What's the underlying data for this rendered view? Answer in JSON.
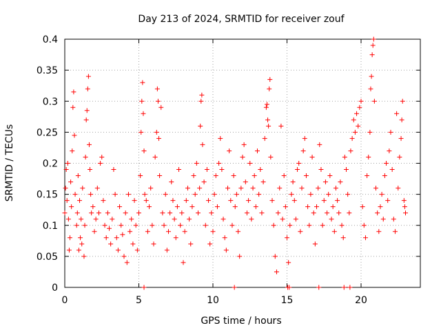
{
  "chart_data": {
    "type": "scatter",
    "title": "Day 213 of 2024, SRMTID for receiver zouf",
    "xlabel": "GPS time / hours",
    "ylabel": "SRMTID / TECUs",
    "xlim": [
      0,
      24
    ],
    "ylim": [
      0,
      0.4
    ],
    "x_ticks": [
      0,
      5,
      10,
      15,
      20
    ],
    "x_tick_labels": [
      "0",
      "5",
      "10",
      "15",
      "20"
    ],
    "y_ticks": [
      0,
      0.05,
      0.1,
      0.15,
      0.2,
      0.25,
      0.3,
      0.35,
      0.4
    ],
    "y_tick_labels": [
      "0",
      "0.05",
      "0.1",
      "0.15",
      "0.2",
      "0.25",
      "0.3",
      "0.35",
      "0.4"
    ],
    "grid": true,
    "marker": "+",
    "color": "#ff0000",
    "series": [
      {
        "points": [
          [
            0.0,
            0.12
          ],
          [
            0.05,
            0.16
          ],
          [
            0.1,
            0.19
          ],
          [
            0.15,
            0.14
          ],
          [
            0.2,
            0.2
          ],
          [
            0.25,
            0.11
          ],
          [
            0.3,
            0.06
          ],
          [
            0.35,
            0.08
          ],
          [
            0.4,
            0.17
          ],
          [
            0.45,
            0.13
          ],
          [
            0.5,
            0.22
          ],
          [
            0.55,
            0.29
          ],
          [
            0.6,
            0.315
          ],
          [
            0.65,
            0.245
          ],
          [
            0.7,
            0.15
          ],
          [
            0.8,
            0.1
          ],
          [
            0.85,
            0.12
          ],
          [
            0.9,
            0.18
          ],
          [
            0.95,
            0.06
          ],
          [
            1.0,
            0.14
          ],
          [
            1.05,
            0.08
          ],
          [
            1.1,
            0.11
          ],
          [
            1.15,
            0.07
          ],
          [
            1.2,
            0.16
          ],
          [
            1.3,
            0.05
          ],
          [
            1.35,
            0.1
          ],
          [
            1.4,
            0.21
          ],
          [
            1.45,
            0.27
          ],
          [
            1.5,
            0.285
          ],
          [
            1.55,
            0.32
          ],
          [
            1.6,
            0.34
          ],
          [
            1.65,
            0.23
          ],
          [
            1.7,
            0.19
          ],
          [
            1.75,
            0.15
          ],
          [
            1.8,
            0.12
          ],
          [
            1.9,
            0.13
          ],
          [
            2.0,
            0.09
          ],
          [
            2.1,
            0.11
          ],
          [
            2.2,
            0.16
          ],
          [
            2.3,
            0.12
          ],
          [
            2.4,
            0.2
          ],
          [
            2.5,
            0.21
          ],
          [
            2.6,
            0.14
          ],
          [
            2.7,
            0.1
          ],
          [
            2.8,
            0.08
          ],
          [
            2.9,
            0.12
          ],
          [
            3.0,
            0.095
          ],
          [
            3.1,
            0.07
          ],
          [
            3.2,
            0.11
          ],
          [
            3.3,
            0.19
          ],
          [
            3.4,
            0.15
          ],
          [
            3.5,
            0.08
          ],
          [
            3.6,
            0.06
          ],
          [
            3.7,
            0.13
          ],
          [
            3.8,
            0.1
          ],
          [
            3.9,
            0.085
          ],
          [
            4.0,
            0.05
          ],
          [
            4.1,
            0.12
          ],
          [
            4.2,
            0.04
          ],
          [
            4.3,
            0.15
          ],
          [
            4.4,
            0.09
          ],
          [
            4.5,
            0.11
          ],
          [
            4.6,
            0.07
          ],
          [
            4.7,
            0.14
          ],
          [
            4.8,
            0.1
          ],
          [
            4.9,
            0.06
          ],
          [
            5.0,
            0.12
          ],
          [
            5.1,
            0.18
          ],
          [
            5.15,
            0.25
          ],
          [
            5.2,
            0.3
          ],
          [
            5.25,
            0.33
          ],
          [
            5.3,
            0.28
          ],
          [
            5.35,
            0.22
          ],
          [
            5.4,
            0.15
          ],
          [
            5.5,
            0.14
          ],
          [
            5.6,
            0.09
          ],
          [
            5.7,
            0.13
          ],
          [
            5.8,
            0.16
          ],
          [
            5.9,
            0.1
          ],
          [
            6.0,
            0.07
          ],
          [
            6.1,
            0.21
          ],
          [
            6.2,
            0.25
          ],
          [
            6.25,
            0.32
          ],
          [
            6.3,
            0.3
          ],
          [
            6.35,
            0.24
          ],
          [
            6.4,
            0.18
          ],
          [
            6.5,
            0.29
          ],
          [
            6.6,
            0.12
          ],
          [
            6.7,
            0.1
          ],
          [
            6.8,
            0.15
          ],
          [
            6.9,
            0.06
          ],
          [
            7.0,
            0.09
          ],
          [
            7.1,
            0.12
          ],
          [
            7.2,
            0.17
          ],
          [
            7.3,
            0.14
          ],
          [
            7.4,
            0.11
          ],
          [
            7.5,
            0.08
          ],
          [
            7.6,
            0.13
          ],
          [
            7.7,
            0.19
          ],
          [
            7.8,
            0.1
          ],
          [
            7.9,
            0.12
          ],
          [
            8.0,
            0.04
          ],
          [
            8.1,
            0.09
          ],
          [
            8.2,
            0.14
          ],
          [
            8.3,
            0.16
          ],
          [
            8.4,
            0.11
          ],
          [
            8.5,
            0.07
          ],
          [
            8.6,
            0.13
          ],
          [
            8.7,
            0.18
          ],
          [
            8.8,
            0.15
          ],
          [
            8.9,
            0.2
          ],
          [
            9.0,
            0.12
          ],
          [
            9.1,
            0.16
          ],
          [
            9.15,
            0.26
          ],
          [
            9.2,
            0.3
          ],
          [
            9.25,
            0.31
          ],
          [
            9.3,
            0.23
          ],
          [
            9.4,
            0.17
          ],
          [
            9.5,
            0.1
          ],
          [
            9.6,
            0.19
          ],
          [
            9.7,
            0.14
          ],
          [
            9.8,
            0.07
          ],
          [
            9.9,
            0.12
          ],
          [
            10.0,
            0.09
          ],
          [
            10.1,
            0.15
          ],
          [
            10.2,
            0.18
          ],
          [
            10.3,
            0.13
          ],
          [
            10.4,
            0.2
          ],
          [
            10.5,
            0.24
          ],
          [
            10.6,
            0.19
          ],
          [
            10.7,
            0.11
          ],
          [
            10.8,
            0.08
          ],
          [
            10.9,
            0.06
          ],
          [
            11.0,
            0.16
          ],
          [
            11.1,
            0.22
          ],
          [
            11.2,
            0.14
          ],
          [
            11.3,
            0.1
          ],
          [
            11.4,
            0.18
          ],
          [
            11.5,
            0.13
          ],
          [
            11.6,
            0.15
          ],
          [
            11.7,
            0.09
          ],
          [
            11.8,
            0.05
          ],
          [
            11.9,
            0.16
          ],
          [
            12.0,
            0.21
          ],
          [
            12.1,
            0.23
          ],
          [
            12.2,
            0.17
          ],
          [
            12.3,
            0.12
          ],
          [
            12.4,
            0.14
          ],
          [
            12.5,
            0.2
          ],
          [
            12.6,
            0.11
          ],
          [
            12.7,
            0.16
          ],
          [
            12.8,
            0.18
          ],
          [
            12.9,
            0.13
          ],
          [
            13.0,
            0.22
          ],
          [
            13.1,
            0.15
          ],
          [
            13.2,
            0.19
          ],
          [
            13.3,
            0.12
          ],
          [
            13.4,
            0.17
          ],
          [
            13.5,
            0.24
          ],
          [
            13.6,
            0.29
          ],
          [
            13.65,
            0.295
          ],
          [
            13.7,
            0.27
          ],
          [
            13.75,
            0.26
          ],
          [
            13.8,
            0.32
          ],
          [
            13.85,
            0.335
          ],
          [
            13.9,
            0.21
          ],
          [
            14.0,
            0.14
          ],
          [
            14.1,
            0.1
          ],
          [
            14.2,
            0.05
          ],
          [
            14.3,
            0.025
          ],
          [
            14.4,
            0.12
          ],
          [
            14.5,
            0.16
          ],
          [
            14.6,
            0.26
          ],
          [
            14.7,
            0.11
          ],
          [
            14.8,
            0.18
          ],
          [
            14.9,
            0.13
          ],
          [
            15.0,
            0.08
          ],
          [
            15.1,
            0.04
          ],
          [
            15.2,
            0.1
          ],
          [
            15.3,
            0.15
          ],
          [
            15.4,
            0.17
          ],
          [
            15.5,
            0.14
          ],
          [
            15.6,
            0.11
          ],
          [
            15.7,
            0.19
          ],
          [
            15.8,
            0.2
          ],
          [
            15.9,
            0.09
          ],
          [
            16.0,
            0.16
          ],
          [
            16.1,
            0.22
          ],
          [
            16.2,
            0.24
          ],
          [
            16.3,
            0.18
          ],
          [
            16.4,
            0.13
          ],
          [
            16.5,
            0.1
          ],
          [
            16.6,
            0.15
          ],
          [
            16.7,
            0.21
          ],
          [
            16.8,
            0.12
          ],
          [
            16.9,
            0.07
          ],
          [
            17.0,
            0.13
          ],
          [
            17.1,
            0.16
          ],
          [
            17.2,
            0.23
          ],
          [
            17.3,
            0.19
          ],
          [
            17.4,
            0.1
          ],
          [
            17.5,
            0.14
          ],
          [
            17.6,
            0.17
          ],
          [
            17.7,
            0.12
          ],
          [
            17.8,
            0.15
          ],
          [
            17.9,
            0.18
          ],
          [
            18.0,
            0.11
          ],
          [
            18.1,
            0.13
          ],
          [
            18.2,
            0.09
          ],
          [
            18.3,
            0.16
          ],
          [
            18.4,
            0.14
          ],
          [
            18.5,
            0.12
          ],
          [
            18.6,
            0.17
          ],
          [
            18.7,
            0.1
          ],
          [
            18.8,
            0.08
          ],
          [
            18.9,
            0.21
          ],
          [
            19.0,
            0.19
          ],
          [
            19.1,
            0.15
          ],
          [
            19.2,
            0.12
          ],
          [
            19.3,
            0.22
          ],
          [
            19.4,
            0.24
          ],
          [
            19.5,
            0.27
          ],
          [
            19.6,
            0.25
          ],
          [
            19.7,
            0.28
          ],
          [
            19.8,
            0.26
          ],
          [
            19.9,
            0.29
          ],
          [
            20.0,
            0.3
          ],
          [
            20.1,
            0.13
          ],
          [
            20.2,
            0.1
          ],
          [
            20.3,
            0.08
          ],
          [
            20.4,
            0.18
          ],
          [
            20.5,
            0.21
          ],
          [
            20.6,
            0.25
          ],
          [
            20.65,
            0.32
          ],
          [
            20.7,
            0.34
          ],
          [
            20.75,
            0.375
          ],
          [
            20.8,
            0.39
          ],
          [
            20.85,
            0.4
          ],
          [
            20.9,
            0.3
          ],
          [
            21.0,
            0.16
          ],
          [
            21.1,
            0.12
          ],
          [
            21.2,
            0.09
          ],
          [
            21.3,
            0.13
          ],
          [
            21.4,
            0.15
          ],
          [
            21.5,
            0.11
          ],
          [
            21.6,
            0.18
          ],
          [
            21.7,
            0.2
          ],
          [
            21.8,
            0.14
          ],
          [
            21.9,
            0.22
          ],
          [
            22.0,
            0.25
          ],
          [
            22.1,
            0.19
          ],
          [
            22.2,
            0.11
          ],
          [
            22.3,
            0.09
          ],
          [
            22.4,
            0.28
          ],
          [
            22.5,
            0.16
          ],
          [
            22.6,
            0.21
          ],
          [
            22.7,
            0.24
          ],
          [
            22.75,
            0.27
          ],
          [
            22.8,
            0.3
          ],
          [
            22.9,
            0.14
          ],
          [
            22.95,
            0.13
          ],
          [
            23.0,
            0.12
          ],
          [
            5.35,
            0.0
          ],
          [
            11.45,
            0.0
          ],
          [
            15.05,
            0.0
          ],
          [
            15.15,
            0.0
          ],
          [
            17.15,
            0.0
          ],
          [
            18.85,
            0.0
          ],
          [
            19.25,
            0.0
          ]
        ]
      }
    ]
  }
}
